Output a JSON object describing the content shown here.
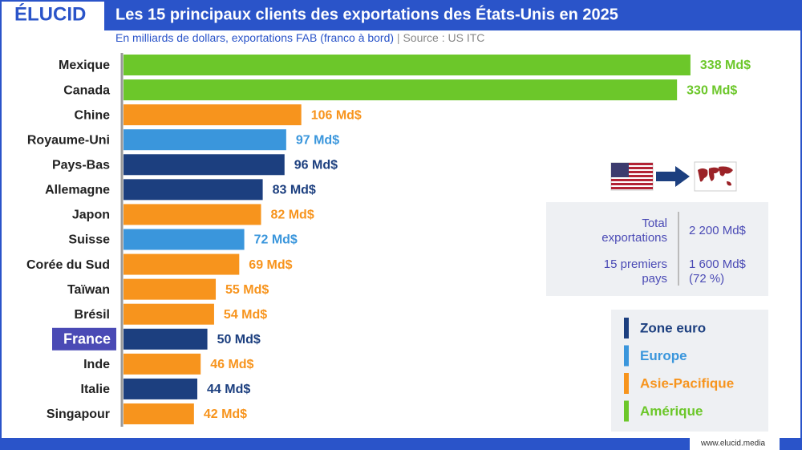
{
  "brand": "ÉLUCID",
  "footer": "www.elucid.media",
  "chart_data": {
    "type": "bar",
    "title": "Les 15 principaux clients des exportations des États-Unis en 2025",
    "subtitle": "En milliards de dollars, exportations FAB (franco à bord)",
    "source": "Source : US ITC",
    "categories": [
      "Mexique",
      "Canada",
      "Chine",
      "Royaume-Uni",
      "Pays-Bas",
      "Allemagne",
      "Japon",
      "Suisse",
      "Corée du Sud",
      "Taïwan",
      "Brésil",
      "France",
      "Inde",
      "Italie",
      "Singapour"
    ],
    "values": [
      338,
      330,
      106,
      97,
      96,
      83,
      82,
      72,
      69,
      55,
      54,
      50,
      46,
      44,
      42
    ],
    "value_labels": [
      "338 Md$",
      "330 Md$",
      "106 Md$",
      "97 Md$",
      "96 Md$",
      "83 Md$",
      "82 Md$",
      "72 Md$",
      "69 Md$",
      "55 Md$",
      "54 Md$",
      "50 Md$",
      "46 Md$",
      "44 Md$",
      "42 Md$"
    ],
    "colors": [
      "#6cc72a",
      "#6cc72a",
      "#f7941d",
      "#3a96dc",
      "#1c3f7f",
      "#1c3f7f",
      "#f7941d",
      "#3a96dc",
      "#f7941d",
      "#f7941d",
      "#f7941d",
      "#1c3f7f",
      "#f7941d",
      "#1c3f7f",
      "#f7941d"
    ],
    "highlight": "France",
    "xlim": [
      0,
      350
    ],
    "legend": [
      {
        "name": "Zone euro",
        "color": "#1c3f7f"
      },
      {
        "name": "Europe",
        "color": "#3a96dc"
      },
      {
        "name": "Asie-Pacifique",
        "color": "#f7941d"
      },
      {
        "name": "Amérique",
        "color": "#6cc72a"
      }
    ],
    "summary": [
      {
        "label": "Total exportations",
        "value": "2 200 Md$"
      },
      {
        "label": "15 premiers pays",
        "value": "1 600 Md$ (72 %)"
      }
    ]
  }
}
